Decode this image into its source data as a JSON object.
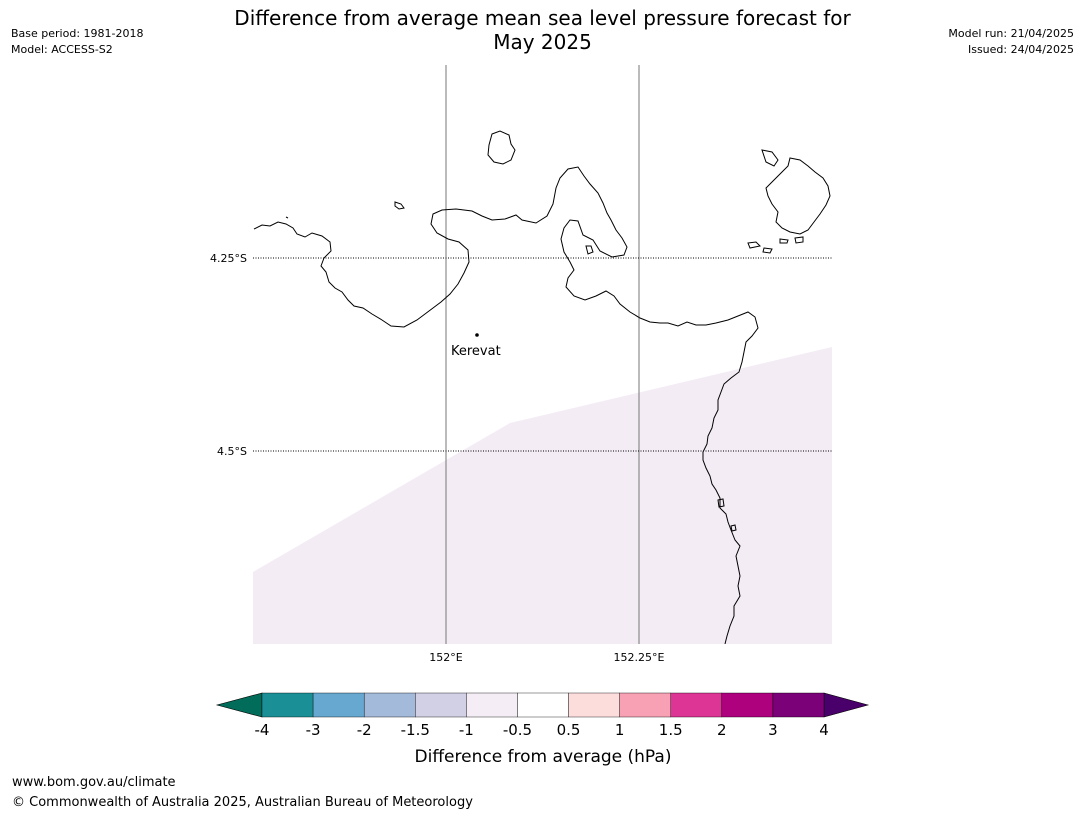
{
  "title": {
    "line1": "Difference from average mean sea level pressure forecast for",
    "line2": "May 2025"
  },
  "meta_left": {
    "base_period": "Base period: 1981-2018",
    "model": "Model: ACCESS-S2"
  },
  "meta_right": {
    "model_run": "Model run: 21/04/2025",
    "issued": "Issued: 24/04/2025"
  },
  "map": {
    "lat_labels": [
      "4.25°S",
      "4.5°S"
    ],
    "lon_labels": [
      "152°E",
      "152.25°E"
    ],
    "place_label": "Kerevat",
    "shaded_region_color": "#f3ecf5",
    "coastline_color": "#000000"
  },
  "colorbar": {
    "title": "Difference from average (hPa)",
    "tick_labels": [
      "-4",
      "-3",
      "-2",
      "-1.5",
      "-1",
      "-0.5",
      "0.5",
      "1",
      "1.5",
      "2",
      "3",
      "4"
    ],
    "colors": [
      "#1a9096",
      "#67a8d0",
      "#a4badb",
      "#d1d0e5",
      "#f4edf6",
      "#ffffff",
      "#fddcdc",
      "#f8a0b4",
      "#dc3596",
      "#ae017e",
      "#7a0177"
    ],
    "under_color": "#016c59",
    "over_color": "#49006a"
  },
  "footer": {
    "website": "www.bom.gov.au/climate",
    "copyright": "© Commonwealth of Australia 2025, Australian Bureau of Meteorology"
  }
}
